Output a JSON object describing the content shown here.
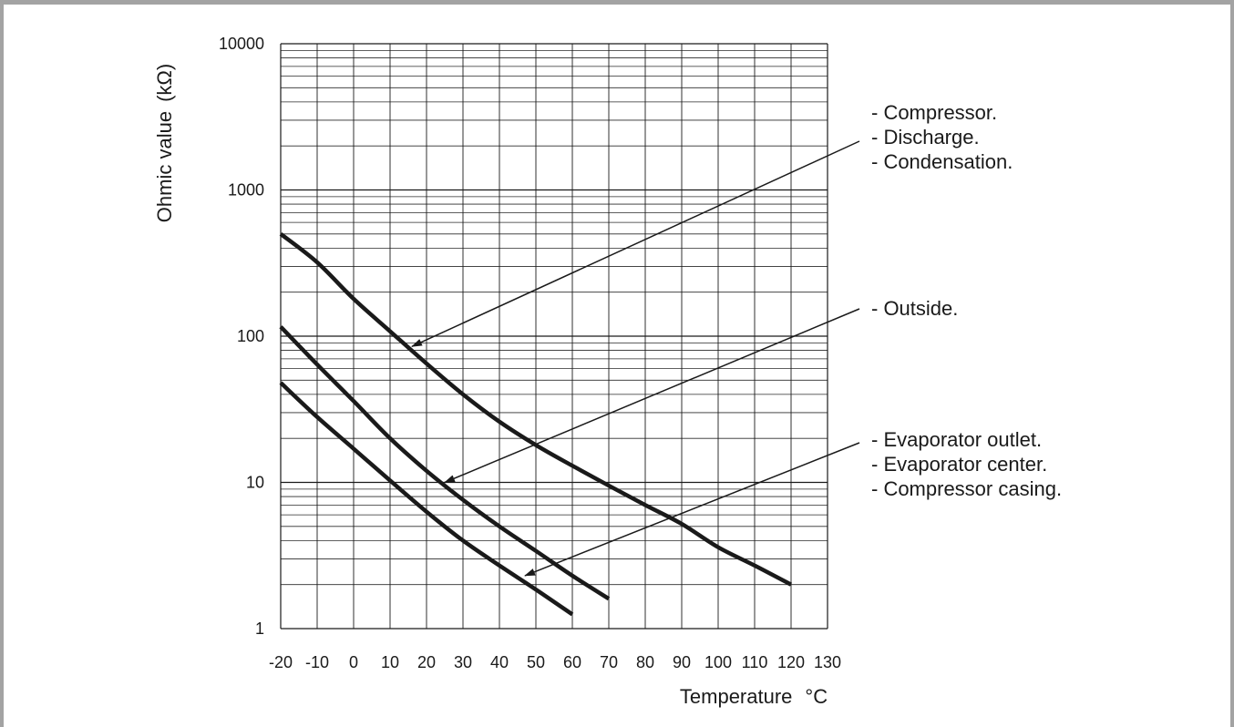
{
  "chart_data": {
    "type": "line",
    "title": "",
    "xlabel": "Temperature",
    "xunit": "°C",
    "ylabel": "Ohmic value",
    "yunit": "(kΩ)",
    "yscale": "log",
    "xlim": [
      -20,
      130
    ],
    "ylim": [
      1,
      10000
    ],
    "grid": true,
    "x_ticks": [
      -20,
      -10,
      0,
      10,
      20,
      30,
      40,
      50,
      60,
      70,
      80,
      90,
      100,
      110,
      120,
      130
    ],
    "y_ticks": [
      1,
      10,
      100,
      1000,
      10000
    ],
    "series": [
      {
        "x": [
          -20,
          -10,
          0,
          10,
          20,
          30,
          40,
          50,
          60,
          70,
          80,
          90,
          100,
          110,
          120
        ],
        "values": [
          500,
          320,
          180,
          108,
          65,
          40,
          26,
          18,
          13,
          9.5,
          7,
          5.2,
          3.6,
          2.7,
          2.0
        ]
      },
      {
        "x": [
          -20,
          -10,
          0,
          10,
          20,
          30,
          40,
          50,
          60,
          70
        ],
        "values": [
          116,
          64,
          36,
          20,
          12,
          7.6,
          5.0,
          3.4,
          2.3,
          1.6
        ]
      },
      {
        "x": [
          -20,
          -10,
          0,
          10,
          20,
          30,
          40,
          50,
          60
        ],
        "values": [
          48,
          28,
          17,
          10.3,
          6.3,
          4.0,
          2.7,
          1.85,
          1.25
        ]
      }
    ],
    "annotations": [
      {
        "lines": [
          "- Compressor.",
          "- Discharge.",
          "- Condensation."
        ],
        "points_to": {
          "x": 16,
          "y": 85
        }
      },
      {
        "lines": [
          "- Outside."
        ],
        "points_to": {
          "x": 25,
          "y": 10
        }
      },
      {
        "lines": [
          "- Evaporator outlet.",
          "- Evaporator center.",
          "- Compressor casing."
        ],
        "points_to": {
          "x": 47,
          "y": 2.3
        }
      }
    ]
  }
}
